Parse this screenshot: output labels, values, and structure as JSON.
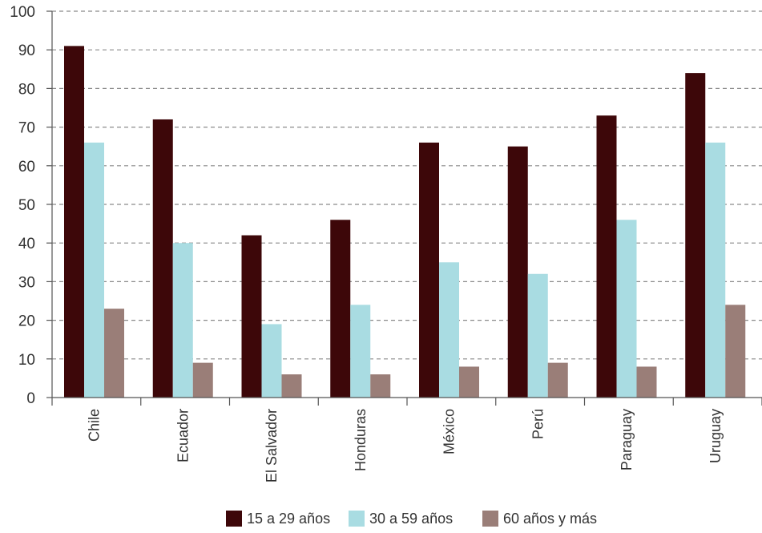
{
  "chart_data": {
    "type": "bar",
    "title": "",
    "xlabel": "",
    "ylabel": "",
    "ylim": [
      0,
      100
    ],
    "yticks": [
      0,
      10,
      20,
      30,
      40,
      50,
      60,
      70,
      80,
      90,
      100
    ],
    "grid": "dashed horizontal",
    "legend": "bottom",
    "categories": [
      "Chile",
      "Ecuador",
      "El Salvador",
      "Honduras",
      "México",
      "Perú",
      "Paraguay",
      "Uruguay"
    ],
    "series": [
      {
        "name": "15 a 29 años",
        "color": "#3d0709",
        "values": [
          91,
          72,
          42,
          46,
          66,
          65,
          73,
          84
        ]
      },
      {
        "name": "30 a 59 años",
        "color": "#a9dce2",
        "values": [
          66,
          40,
          19,
          24,
          35,
          32,
          46,
          66
        ]
      },
      {
        "name": "60 años y más",
        "color": "#9a7e78",
        "values": [
          23,
          9,
          6,
          6,
          8,
          9,
          8,
          24
        ]
      }
    ]
  }
}
